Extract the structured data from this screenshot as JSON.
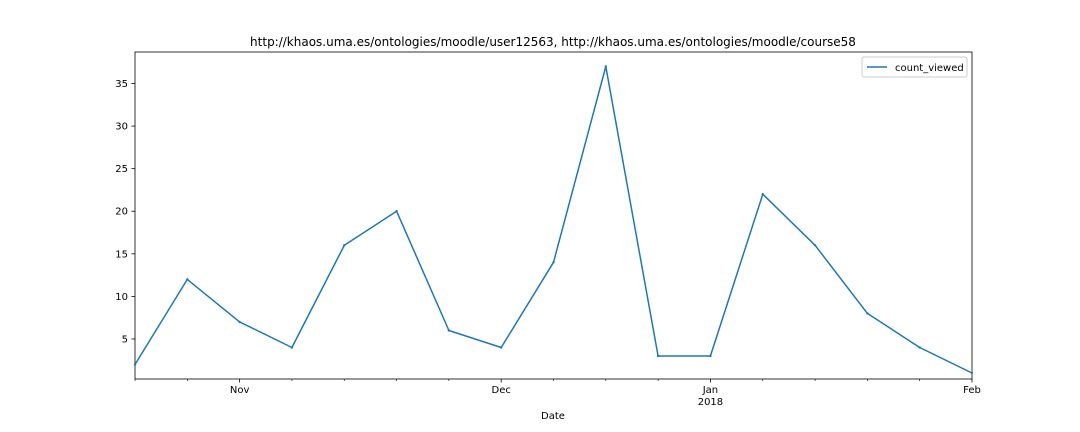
{
  "chart_data": {
    "type": "line",
    "title": "http://khaos.uma.es/ontologies/moodle/user12563, http://khaos.uma.es/ontologies/moodle/course58",
    "xlabel": "Date",
    "ylabel": "",
    "x": [
      "2017-10-15",
      "2017-10-22",
      "2017-10-29",
      "2017-11-05",
      "2017-11-12",
      "2017-11-19",
      "2017-11-26",
      "2017-12-03",
      "2017-12-10",
      "2017-12-17",
      "2017-12-24",
      "2017-12-31",
      "2018-01-07",
      "2018-01-14",
      "2018-01-21",
      "2018-01-28",
      "2018-02-04"
    ],
    "series": [
      {
        "name": "count_viewed",
        "values": [
          2,
          12,
          7,
          4,
          16,
          20,
          6,
          4,
          14,
          37,
          3,
          3,
          22,
          16,
          8,
          4,
          1
        ],
        "color": "#1f77b4"
      }
    ],
    "xlim": [
      "2017-10-15",
      "2018-02-04"
    ],
    "ylim": [
      0.3,
      38.7
    ],
    "yticks": [
      5,
      10,
      15,
      20,
      25,
      30,
      35
    ],
    "xticks_major": [
      {
        "date": "2017-10-29",
        "label": "Nov",
        "sublabel": ""
      },
      {
        "date": "2017-12-03",
        "label": "Dec",
        "sublabel": ""
      },
      {
        "date": "2017-12-31",
        "label": "Jan",
        "sublabel": "2018"
      },
      {
        "date": "2018-02-04",
        "label": "Feb",
        "sublabel": ""
      }
    ],
    "xticks_minor": [
      "2017-10-15",
      "2017-10-22",
      "2017-11-05",
      "2017-11-12",
      "2017-11-19",
      "2017-11-26",
      "2017-12-10",
      "2017-12-17",
      "2017-12-24",
      "2018-01-07",
      "2018-01-14",
      "2018-01-21",
      "2018-01-28"
    ],
    "legend": {
      "position": "top-right"
    },
    "grid": false
  }
}
